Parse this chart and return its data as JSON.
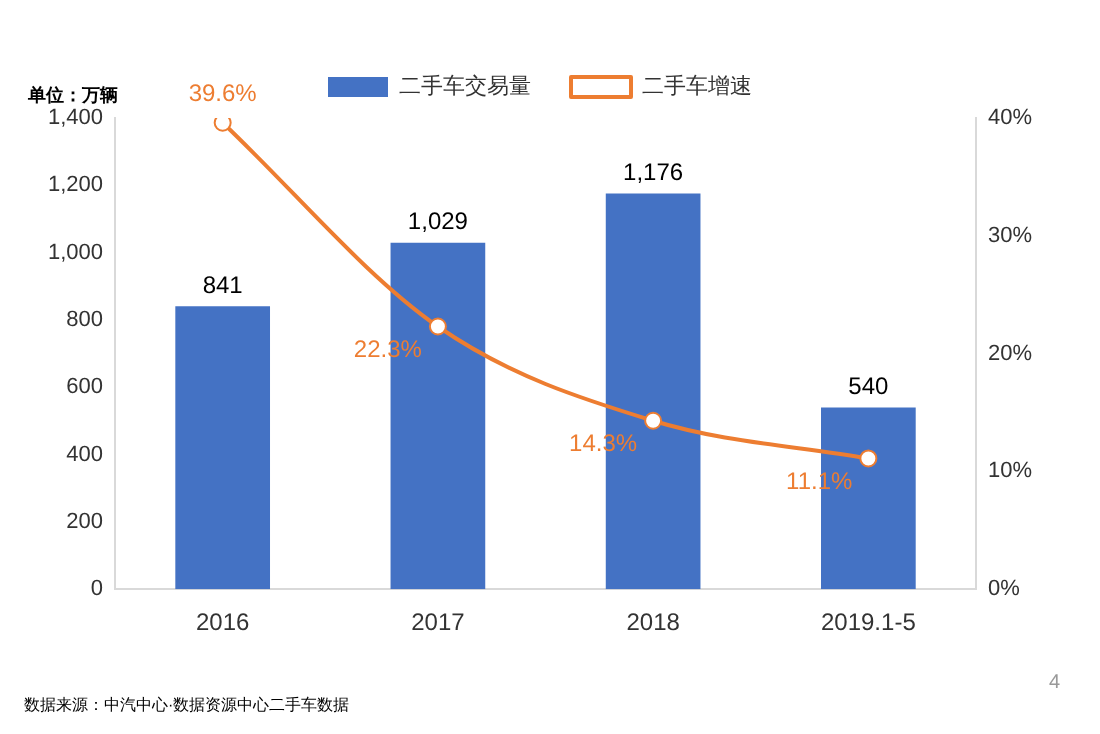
{
  "chart_data": {
    "type": "bar",
    "ylabel": "单位：万辆",
    "categories": [
      "2016",
      "2017",
      "2018",
      "2019.1-5"
    ],
    "series": [
      {
        "name": "二手车交易量",
        "type": "bar",
        "color": "#4472c4",
        "values": [
          841,
          1029,
          1176,
          540
        ],
        "value_labels": [
          "841",
          "1,029",
          "1,176",
          "540"
        ]
      },
      {
        "name": "二手车增速",
        "type": "line",
        "axis": "y2",
        "color": "#ed7d31",
        "marker": "circle",
        "values": [
          39.6,
          22.3,
          14.3,
          11.1
        ],
        "value_labels": [
          "39.6%",
          "22.3%",
          "14.3%",
          "11.1%"
        ]
      }
    ],
    "ylim": [
      0,
      1400
    ],
    "yticks": [
      0,
      {
        "value": 200,
        "label": "200"
      },
      {
        "value": 400,
        "label": "400"
      },
      {
        "value": 600,
        "label": "600"
      },
      {
        "value": 800,
        "label": "800"
      },
      {
        "value": 1000,
        "label": "1,000"
      },
      {
        "value": 1200,
        "label": "1,200"
      },
      {
        "value": 1400,
        "label": "1,400"
      }
    ],
    "y2lim": [
      0,
      40
    ],
    "y2ticks": [
      {
        "value": 0,
        "label": "0%"
      },
      {
        "value": 10,
        "label": "10%"
      },
      {
        "value": 20,
        "label": "20%"
      },
      {
        "value": 30,
        "label": "30%"
      },
      {
        "value": 40,
        "label": "40%"
      }
    ],
    "legend": "top",
    "grid": false,
    "annotations": [
      "数据来源：中汽中心·数据资源中心二手车数据",
      "4"
    ]
  }
}
